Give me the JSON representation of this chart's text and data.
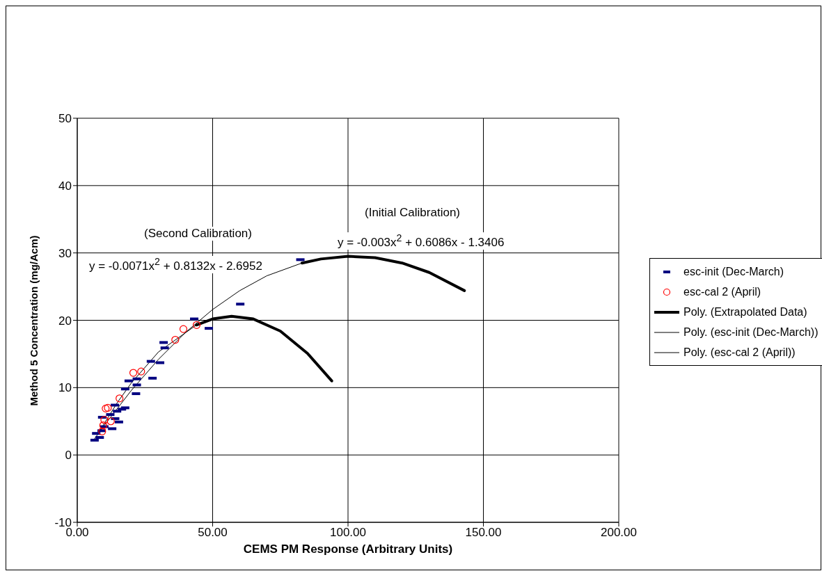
{
  "chart_data": {
    "type": "scatter",
    "xlabel": "CEMS PM Response (Arbitrary Units)",
    "ylabel": "Method 5 Concentration (mg/Acm)",
    "xlim": [
      0,
      200
    ],
    "xticks": [
      {
        "value": 0,
        "label": "0.00"
      },
      {
        "value": 50,
        "label": "50.00"
      },
      {
        "value": 100,
        "label": "100.00"
      },
      {
        "value": 150,
        "label": "150.00"
      },
      {
        "value": 200,
        "label": "200.00"
      }
    ],
    "ylim": [
      -10,
      50
    ],
    "yticks": [
      -10,
      0,
      10,
      20,
      30,
      40,
      50
    ],
    "grid": true,
    "legend": "right",
    "annotations": [
      "(Second Calibration)",
      "y = -0.0071x$^{2}$ + 0.8132x - 2.6952",
      "(Initial Calibration)",
      "y = -0.003x$^{2}$ + 0.6086x - 1.3406"
    ],
    "series": [
      {
        "name": "esc-init (Dec-March)",
        "color": "#000080",
        "x": [
          6.4,
          8.3,
          7.0,
          9.0,
          12.9,
          10.0,
          15.4,
          9.2,
          14.0,
          12.2,
          14.7,
          17.7,
          13.9,
          16.5,
          21.7,
          22.0,
          17.7,
          19.0,
          22.0,
          27.8,
          27.2,
          30.6,
          32.3,
          31.9,
          43.2,
          48.6,
          60.2,
          82.4
        ],
        "values": [
          2.2,
          2.6,
          3.2,
          3.6,
          3.9,
          4.2,
          4.9,
          5.6,
          5.4,
          6.0,
          6.5,
          7.0,
          7.4,
          6.8,
          9.1,
          10.4,
          9.8,
          11.0,
          11.3,
          11.4,
          13.9,
          13.7,
          15.9,
          16.7,
          20.2,
          18.8,
          22.4,
          29.0
        ]
      },
      {
        "name": "esc-cal 2 (April)",
        "marker": "circle",
        "color": "#ff0000",
        "x": [
          9.2,
          9.6,
          10.0,
          12.4,
          10.5,
          11.3,
          15.6,
          20.7,
          23.6,
          36.2,
          39.2,
          44.1
        ],
        "values": [
          3.5,
          4.4,
          5.2,
          5.0,
          6.9,
          7.0,
          8.4,
          12.2,
          12.4,
          17.1,
          18.7,
          19.3
        ]
      },
      {
        "name": "Poly. (Extrapolated Data)",
        "type": "line",
        "color": "#000000",
        "x": [
          44,
          50,
          57,
          65,
          75,
          85,
          94,
          null,
          83,
          90,
          100,
          110,
          120,
          130,
          143
        ],
        "values": [
          19.3,
          20.2,
          20.6,
          20.2,
          18.4,
          15.1,
          11.0,
          null,
          28.5,
          29.1,
          29.5,
          29.3,
          28.5,
          27.1,
          24.4
        ]
      },
      {
        "name": "Poly. (esc-init (Dec-March))",
        "type": "line",
        "color": "#000000",
        "x": [
          6,
          10,
          20,
          30,
          40,
          50,
          60,
          70,
          83
        ],
        "values": [
          2.2,
          4.4,
          9.6,
          14.2,
          18.2,
          21.6,
          24.4,
          26.6,
          28.5
        ]
      },
      {
        "name": "Poly. (esc-cal 2 (April))",
        "type": "line",
        "color": "#000000",
        "x": [
          8,
          15,
          20,
          30,
          44
        ],
        "values": [
          3.4,
          7.9,
          10.7,
          15.3,
          19.3
        ]
      }
    ]
  }
}
